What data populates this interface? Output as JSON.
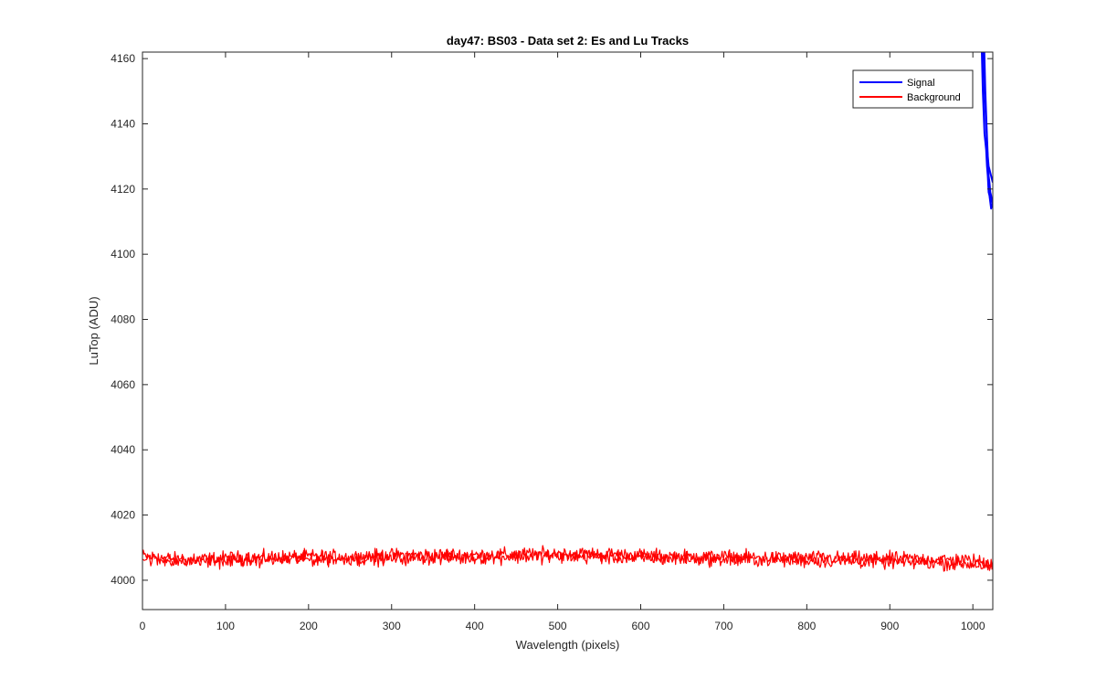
{
  "chart_data": {
    "type": "line",
    "title": "day47: BS03 - Data set 2: Es and Lu Tracks",
    "xlabel": "Wavelength (pixels)",
    "ylabel": "LuTop (ADU)",
    "xlim": [
      0,
      1024
    ],
    "ylim": [
      3991,
      4162
    ],
    "xticks": [
      0,
      100,
      200,
      300,
      400,
      500,
      600,
      700,
      800,
      900,
      1000
    ],
    "yticks": [
      4000,
      4020,
      4040,
      4060,
      4080,
      4100,
      4120,
      4140,
      4160
    ],
    "grid": false,
    "legend_position": "top-right",
    "series": [
      {
        "name": "Signal",
        "color": "#0000ff",
        "traces": [
          {
            "x": [
              1010,
              1012,
              1014,
              1016,
              1017,
              1018,
              1019,
              1020,
              1021,
              1022,
              1023,
              1024
            ],
            "y": [
              4170,
              4150,
              4137,
              4132,
              4127,
              4124,
              4119,
              4118,
              4116,
              4114,
              4115,
              4116
            ]
          },
          {
            "x": [
              1012,
              1014,
              1016,
              1017,
              1018,
              1019,
              1020,
              1021,
              1022,
              1023,
              1024
            ],
            "y": [
              4170,
              4150,
              4140,
              4134,
              4128,
              4124,
              4122,
              4119,
              4118,
              4116,
              4117
            ]
          },
          {
            "x": [
              1013,
              1015,
              1017,
              1018,
              1019,
              1020,
              1021,
              1022,
              1023,
              1024
            ],
            "y": [
              4170,
              4150,
              4136,
              4130,
              4127,
              4126,
              4125,
              4124,
              4123,
              4122
            ]
          }
        ]
      },
      {
        "name": "Background",
        "color": "#ff0000",
        "traces": [
          {
            "x": [
              0,
              50,
              100,
              150,
              200,
              250,
              300,
              350,
              400,
              450,
              500,
              550,
              600,
              650,
              700,
              750,
              800,
              850,
              900,
              950,
              1000,
              1024
            ],
            "y": [
              4007.5,
              4006.2,
              4006.8,
              4007.0,
              4007.3,
              4007.1,
              4007.6,
              4007.8,
              4007.7,
              4007.9,
              4008.2,
              4008.0,
              4007.6,
              4007.3,
              4007.2,
              4006.9,
              4006.9,
              4006.7,
              4006.6,
              4006.5,
              4006.0,
              4005.0
            ],
            "noise": 1.6
          },
          {
            "x": [
              0,
              50,
              100,
              150,
              200,
              250,
              300,
              350,
              400,
              450,
              500,
              550,
              600,
              650,
              700,
              750,
              800,
              850,
              900,
              950,
              1000,
              1024
            ],
            "y": [
              4006.5,
              4005.8,
              4006.0,
              4006.3,
              4006.4,
              4006.6,
              4006.7,
              4006.9,
              4007.0,
              4007.2,
              4007.4,
              4007.1,
              4006.8,
              4006.6,
              4006.5,
              4006.2,
              4006.0,
              4005.8,
              4005.6,
              4005.3,
              4004.9,
              4004.0
            ],
            "noise": 1.6
          }
        ]
      }
    ]
  }
}
